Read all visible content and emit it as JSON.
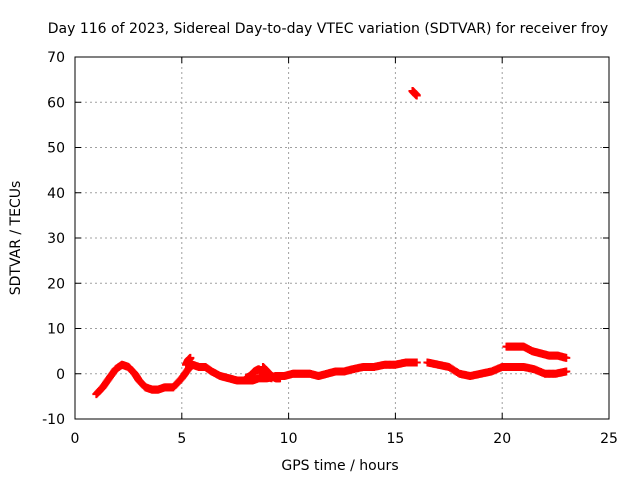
{
  "chart_data": {
    "type": "scatter",
    "title": "Day 116 of 2023, Sidereal Day-to-day VTEC variation (SDTVAR) for receiver froy",
    "xlabel": "GPS time / hours",
    "ylabel": "SDTVAR / TECUs",
    "xlim": [
      0,
      25
    ],
    "ylim": [
      -10,
      70
    ],
    "xticks": [
      0,
      5,
      10,
      15,
      20,
      25
    ],
    "yticks": [
      -10,
      0,
      10,
      20,
      30,
      40,
      50,
      60,
      70
    ],
    "grid": true,
    "marker_color": "#ff0000",
    "series": [
      {
        "name": "main-trace",
        "x": [
          1.0,
          1.3,
          1.6,
          1.9,
          2.2,
          2.5,
          2.8,
          3.0,
          3.3,
          3.6,
          3.9,
          4.2,
          4.6,
          5.0,
          5.3,
          5.5,
          5.8,
          6.1,
          6.4,
          6.8,
          7.2,
          7.6,
          8.0,
          8.3,
          8.6,
          9.0,
          9.4,
          9.8,
          10.2,
          10.6,
          11.0,
          11.4,
          11.8,
          12.2,
          12.6,
          13.0,
          13.5,
          14.0,
          14.5,
          15.0,
          15.5,
          16.0
        ],
        "y": [
          -4.5,
          -3.0,
          -1.0,
          1.0,
          2.0,
          1.5,
          0.0,
          -1.5,
          -3.0,
          -3.5,
          -3.5,
          -3.0,
          -3.0,
          -1.0,
          1.0,
          2.0,
          1.5,
          1.5,
          0.5,
          -0.5,
          -1.0,
          -1.5,
          -1.5,
          -1.5,
          -1.0,
          -1.0,
          -0.5,
          -0.5,
          0.0,
          0.0,
          0.0,
          -0.5,
          0.0,
          0.5,
          0.5,
          1.0,
          1.5,
          1.5,
          2.0,
          2.0,
          2.5,
          2.5
        ]
      },
      {
        "name": "branch-8h",
        "x": [
          8.0,
          8.2,
          8.4,
          8.6,
          8.8,
          9.0,
          9.2
        ],
        "y": [
          -1.0,
          -0.5,
          0.5,
          1.0,
          0.0,
          -0.5,
          -1.0
        ]
      },
      {
        "name": "branch-9h",
        "x": [
          8.8,
          9.0,
          9.2,
          9.4,
          9.6
        ],
        "y": [
          1.5,
          0.5,
          -0.5,
          -1.0,
          -1.0
        ]
      },
      {
        "name": "spike-5h",
        "x": [
          5.2,
          5.3,
          5.4
        ],
        "y": [
          2.0,
          3.0,
          3.5
        ]
      },
      {
        "name": "after-gap",
        "x": [
          16.5,
          17.0,
          17.5,
          18.0,
          18.5,
          19.0,
          19.5,
          20.0,
          20.5,
          21.0,
          21.5,
          22.0,
          22.5,
          23.0
        ],
        "y": [
          2.5,
          2.0,
          1.5,
          0.0,
          -0.5,
          0.0,
          0.5,
          1.5,
          1.5,
          1.5,
          1.0,
          0.0,
          0.0,
          0.5
        ]
      },
      {
        "name": "upper-trace",
        "x": [
          20.2,
          20.6,
          21.0,
          21.4,
          21.8,
          22.2,
          22.6,
          23.0
        ],
        "y": [
          6.0,
          6.0,
          6.0,
          5.0,
          4.5,
          4.0,
          4.0,
          3.5
        ]
      },
      {
        "name": "outlier",
        "x": [
          15.8,
          15.9,
          16.0
        ],
        "y": [
          62.5,
          62.0,
          61.5
        ]
      }
    ]
  }
}
